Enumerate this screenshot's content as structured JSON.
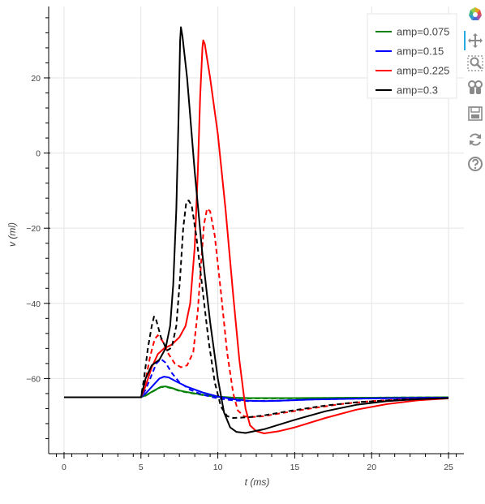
{
  "chart_data": {
    "type": "line",
    "xlabel": "t (ms)",
    "ylabel": "v (ml)",
    "xlim": [
      -1,
      26
    ],
    "ylim": [
      -80,
      39
    ],
    "x_ticks": [
      0,
      5,
      10,
      15,
      20,
      25
    ],
    "y_ticks": [
      -60,
      -40,
      -20,
      0,
      20
    ],
    "x_tick_labels": [
      "0",
      "5",
      "10",
      "15",
      "20",
      "25"
    ],
    "y_tick_labels": [
      "−60",
      "−40",
      "−20",
      "0",
      "20"
    ],
    "grid": true,
    "legend_placement": "top-right",
    "series": [
      {
        "name": "amp=0.075",
        "color": "#008000",
        "dash": "solid",
        "in_legend": true,
        "points": [
          [
            0,
            -65
          ],
          [
            5,
            -65
          ],
          [
            5.3,
            -64.5
          ],
          [
            5.8,
            -63.3
          ],
          [
            6.3,
            -62.2
          ],
          [
            6.6,
            -62.1
          ],
          [
            7,
            -62.5
          ],
          [
            7.5,
            -63.2
          ],
          [
            8,
            -63.6
          ],
          [
            9,
            -64.3
          ],
          [
            10,
            -64.8
          ],
          [
            11,
            -65.1
          ],
          [
            12,
            -65.2
          ],
          [
            13,
            -65.2
          ],
          [
            15,
            -65.2
          ],
          [
            20,
            -65.1
          ],
          [
            25,
            -65
          ]
        ]
      },
      {
        "name": "amp=0.075",
        "color": "#008000",
        "dash": "dashed",
        "in_legend": false,
        "points": [
          [
            0,
            -65
          ],
          [
            5,
            -65
          ],
          [
            5.3,
            -64.6
          ],
          [
            5.8,
            -63.4
          ],
          [
            6.3,
            -62.3
          ],
          [
            6.6,
            -62.2
          ],
          [
            7,
            -62.6
          ],
          [
            7.5,
            -63.3
          ],
          [
            8,
            -63.7
          ],
          [
            9,
            -64.4
          ],
          [
            10,
            -64.9
          ],
          [
            11,
            -65.2
          ],
          [
            12,
            -65.3
          ],
          [
            15,
            -65.3
          ],
          [
            20,
            -65.1
          ],
          [
            25,
            -65
          ]
        ]
      },
      {
        "name": "amp=0.15",
        "color": "#0000ff",
        "dash": "solid",
        "in_legend": true,
        "points": [
          [
            0,
            -65
          ],
          [
            5,
            -65
          ],
          [
            5.3,
            -64
          ],
          [
            5.8,
            -61.8
          ],
          [
            6.2,
            -60
          ],
          [
            6.5,
            -59.5
          ],
          [
            6.8,
            -59.7
          ],
          [
            7.3,
            -60.8
          ],
          [
            8,
            -62.2
          ],
          [
            9,
            -63.7
          ],
          [
            10,
            -64.8
          ],
          [
            11,
            -65.5
          ],
          [
            12,
            -65.9
          ],
          [
            13,
            -66
          ],
          [
            14,
            -65.9
          ],
          [
            16,
            -65.6
          ],
          [
            20,
            -65.3
          ],
          [
            25,
            -65.1
          ]
        ]
      },
      {
        "name": "amp=0.15",
        "color": "#0000ff",
        "dash": "dashed",
        "in_legend": false,
        "points": [
          [
            0,
            -65
          ],
          [
            5,
            -65
          ],
          [
            5.3,
            -63
          ],
          [
            5.7,
            -59
          ],
          [
            6,
            -56
          ],
          [
            6.3,
            -54.8
          ],
          [
            6.6,
            -55.8
          ],
          [
            7,
            -58.5
          ],
          [
            7.5,
            -61
          ],
          [
            8.2,
            -63
          ],
          [
            9,
            -64.3
          ],
          [
            10,
            -65.3
          ],
          [
            11,
            -65.8
          ],
          [
            12,
            -66
          ],
          [
            14,
            -65.9
          ],
          [
            16,
            -65.6
          ],
          [
            20,
            -65.3
          ],
          [
            25,
            -65.1
          ]
        ]
      },
      {
        "name": "amp=0.225",
        "color": "#ff0000",
        "dash": "solid",
        "in_legend": true,
        "points": [
          [
            0,
            -65
          ],
          [
            5,
            -65
          ],
          [
            5.3,
            -62
          ],
          [
            5.7,
            -57
          ],
          [
            6.1,
            -53.5
          ],
          [
            6.5,
            -52
          ],
          [
            7,
            -51
          ],
          [
            7.5,
            -49
          ],
          [
            7.9,
            -46
          ],
          [
            8.2,
            -40
          ],
          [
            8.5,
            -25
          ],
          [
            8.7,
            -5
          ],
          [
            8.85,
            15
          ],
          [
            9,
            28
          ],
          [
            9.05,
            30
          ],
          [
            9.15,
            29
          ],
          [
            9.5,
            20
          ],
          [
            10,
            5
          ],
          [
            10.5,
            -15
          ],
          [
            11,
            -38
          ],
          [
            11.4,
            -55
          ],
          [
            11.8,
            -68
          ],
          [
            12.1,
            -72.5
          ],
          [
            12.5,
            -74
          ],
          [
            13,
            -74.6
          ],
          [
            14,
            -74
          ],
          [
            15,
            -73
          ],
          [
            17,
            -70.5
          ],
          [
            19,
            -68.3
          ],
          [
            21,
            -66.8
          ],
          [
            23,
            -65.8
          ],
          [
            25,
            -65.3
          ]
        ]
      },
      {
        "name": "amp=0.225",
        "color": "#ff0000",
        "dash": "dashed",
        "in_legend": false,
        "points": [
          [
            0,
            -65
          ],
          [
            5,
            -65
          ],
          [
            5.3,
            -60.5
          ],
          [
            5.6,
            -54
          ],
          [
            5.9,
            -49.5
          ],
          [
            6.1,
            -48.5
          ],
          [
            6.4,
            -50
          ],
          [
            6.8,
            -53.5
          ],
          [
            7.2,
            -56
          ],
          [
            7.6,
            -57
          ],
          [
            8,
            -56.5
          ],
          [
            8.4,
            -53
          ],
          [
            8.7,
            -42
          ],
          [
            8.9,
            -30
          ],
          [
            9.1,
            -19
          ],
          [
            9.3,
            -14.8
          ],
          [
            9.5,
            -15.5
          ],
          [
            9.8,
            -22
          ],
          [
            10.2,
            -37
          ],
          [
            10.6,
            -53
          ],
          [
            11,
            -64
          ],
          [
            11.3,
            -68.5
          ],
          [
            11.7,
            -70
          ],
          [
            12.1,
            -70.3
          ],
          [
            13,
            -70
          ],
          [
            14,
            -69.3
          ],
          [
            16,
            -68
          ],
          [
            18,
            -66.8
          ],
          [
            20,
            -66
          ],
          [
            22,
            -65.6
          ],
          [
            25,
            -65.2
          ]
        ]
      },
      {
        "name": "amp=0.3",
        "color": "#000000",
        "dash": "solid",
        "in_legend": true,
        "points": [
          [
            0,
            -65
          ],
          [
            5,
            -65
          ],
          [
            5.3,
            -60
          ],
          [
            5.7,
            -56.5
          ],
          [
            6.2,
            -55
          ],
          [
            6.6,
            -52
          ],
          [
            6.9,
            -46
          ],
          [
            7.1,
            -35
          ],
          [
            7.3,
            -15
          ],
          [
            7.45,
            10
          ],
          [
            7.55,
            30
          ],
          [
            7.6,
            33.5
          ],
          [
            7.7,
            31
          ],
          [
            8,
            20
          ],
          [
            8.5,
            -5
          ],
          [
            9,
            -27
          ],
          [
            9.5,
            -45
          ],
          [
            10,
            -60
          ],
          [
            10.4,
            -69
          ],
          [
            10.8,
            -73
          ],
          [
            11.2,
            -74.2
          ],
          [
            11.8,
            -74.5
          ],
          [
            13,
            -73.5
          ],
          [
            15,
            -71
          ],
          [
            17,
            -68.7
          ],
          [
            19,
            -67
          ],
          [
            21,
            -66
          ],
          [
            23,
            -65.5
          ],
          [
            25,
            -65.2
          ]
        ]
      },
      {
        "name": "amp=0.3",
        "color": "#000000",
        "dash": "dashed",
        "in_legend": false,
        "points": [
          [
            0,
            -65
          ],
          [
            5,
            -65
          ],
          [
            5.2,
            -60
          ],
          [
            5.45,
            -52
          ],
          [
            5.7,
            -46
          ],
          [
            5.85,
            -43.5
          ],
          [
            6,
            -44.5
          ],
          [
            6.3,
            -49
          ],
          [
            6.7,
            -52.5
          ],
          [
            7,
            -51.8
          ],
          [
            7.3,
            -46
          ],
          [
            7.55,
            -33
          ],
          [
            7.75,
            -20
          ],
          [
            7.95,
            -13
          ],
          [
            8.1,
            -12.6
          ],
          [
            8.3,
            -14
          ],
          [
            8.6,
            -22
          ],
          [
            9,
            -36
          ],
          [
            9.4,
            -50
          ],
          [
            9.8,
            -61
          ],
          [
            10.2,
            -67.5
          ],
          [
            10.6,
            -70
          ],
          [
            11,
            -70.5
          ],
          [
            12,
            -70.3
          ],
          [
            13,
            -69.8
          ],
          [
            15,
            -68.4
          ],
          [
            17,
            -67.2
          ],
          [
            19,
            -66.3
          ],
          [
            22,
            -65.6
          ],
          [
            25,
            -65.2
          ]
        ]
      }
    ]
  },
  "toolbar": {
    "tools": [
      "bokeh-logo-icon",
      "pan-icon",
      "box-zoom-icon",
      "wheel-zoom-icon",
      "save-icon",
      "reset-icon",
      "help-icon"
    ],
    "active_color": "#26aae1"
  }
}
